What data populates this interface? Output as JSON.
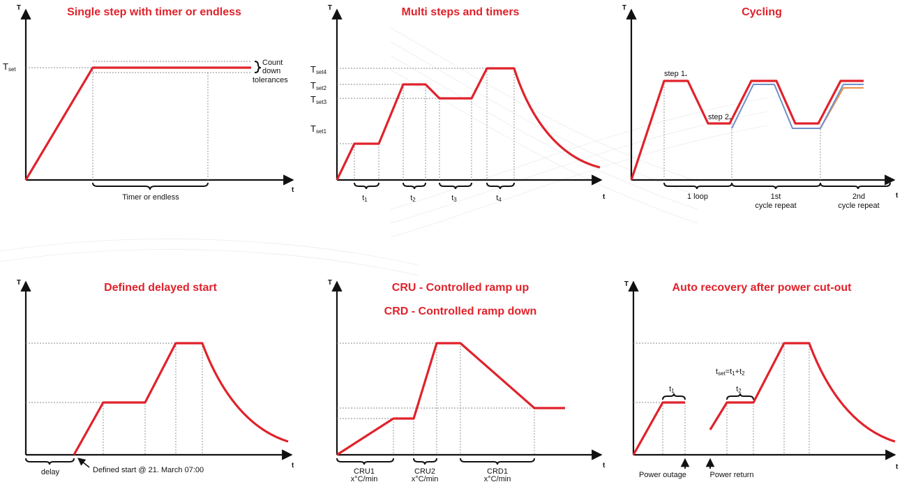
{
  "colors": {
    "red": "#e0222b",
    "blue": "#6f91c8",
    "orange": "#e8904a",
    "axis": "#111111",
    "guide": "#8a8a8a"
  },
  "panels": {
    "single": {
      "title": "Single step with timer or endless",
      "y_axis": "T",
      "x_axis": "t",
      "tset_main": "T",
      "tset_sub": "set",
      "tolerance_lines": [
        "Count",
        "down",
        "tolerances"
      ],
      "timer_label": "Timer or endless"
    },
    "multi": {
      "title": "Multi steps and timers",
      "y_axis": "T",
      "x_axis": "t",
      "tset_main": "T",
      "tset4_sub": "set4",
      "tset2_sub": "set2",
      "tset3_sub": "set3",
      "tset1_sub": "set1",
      "timers": [
        {
          "main": "t",
          "sub": "1"
        },
        {
          "main": "t",
          "sub": "2"
        },
        {
          "main": "t",
          "sub": "3"
        },
        {
          "main": "t",
          "sub": "4"
        }
      ]
    },
    "cycling": {
      "title": "Cycling",
      "y_axis": "T",
      "x_axis": "t",
      "step1": "step 1",
      "step2": "step 2",
      "loop_label": "1 loop",
      "repeat1_line1": "1st",
      "repeat1_line2": "cycle repeat",
      "repeat2_line1": "2nd",
      "repeat2_line2": "cycle repeat"
    },
    "delayed": {
      "title": "Defined delayed start",
      "y_axis": "T",
      "x_axis": "t",
      "delay_label": "delay",
      "start_label": "Defined start @ 21. March 07:00"
    },
    "ramp": {
      "title1": "CRU - Controlled ramp up",
      "title2": "CRD - Controlled ramp down",
      "y_axis": "T",
      "x_axis": "t",
      "segments": [
        {
          "name": "CRU1",
          "rate": "x°C/min"
        },
        {
          "name": "CRU2",
          "rate": "x°C/min"
        },
        {
          "name": "CRD1",
          "rate": "x°C/min"
        }
      ]
    },
    "recovery": {
      "title": "Auto recovery after power cut-out",
      "y_axis": "T",
      "x_axis": "t",
      "formula_main": "t",
      "formula_sub": "set",
      "formula_rest": "=t",
      "formula_sub1": "1",
      "formula_plus": "+t",
      "formula_sub2": "2",
      "t1_main": "t",
      "t1_sub": "1",
      "t2_main": "t",
      "t2_sub": "2",
      "outage_label": "Power outage",
      "return_label": "Power return"
    }
  }
}
